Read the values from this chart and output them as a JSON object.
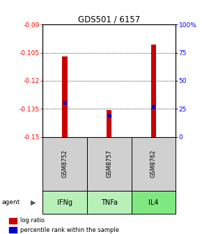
{
  "title": "GDS501 / 6157",
  "samples": [
    "GSM8752",
    "GSM8757",
    "GSM8762"
  ],
  "agents": [
    "IFNg",
    "TNFa",
    "IL4"
  ],
  "log_ratios": [
    -0.107,
    -0.1355,
    -0.1005
  ],
  "percentile_ranks": [
    31,
    19,
    27
  ],
  "ylim_left": [
    -0.15,
    -0.09
  ],
  "ylim_right": [
    0,
    100
  ],
  "left_ticks": [
    -0.15,
    -0.135,
    -0.12,
    -0.105,
    -0.09
  ],
  "right_ticks": [
    0,
    25,
    50,
    75,
    100
  ],
  "left_tick_labels": [
    "-0.15",
    "-0.135",
    "-0.12",
    "-0.105",
    "-0.09"
  ],
  "right_tick_labels": [
    "0",
    "25",
    "50",
    "75",
    "100%"
  ],
  "bar_color": "#cc0000",
  "marker_color": "#0000cc",
  "agent_colors": [
    "#b8f0b8",
    "#b8f0b8",
    "#80e880"
  ],
  "sample_bg": "#d0d0d0",
  "grid_lines": [
    -0.105,
    -0.12,
    -0.135
  ],
  "bar_bottom": -0.15,
  "bar_width": 0.12
}
